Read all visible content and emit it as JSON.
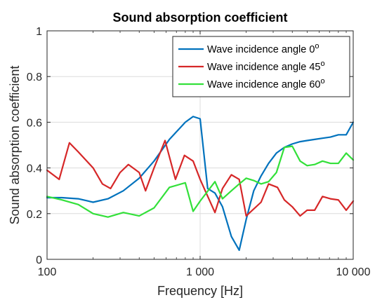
{
  "chart_data": {
    "type": "line",
    "title": "Sound absorption coefficient",
    "xlabel": "Frequency [Hz]",
    "ylabel": "Sound absorption coefficient",
    "xscale": "log",
    "xlim": [
      100,
      10000
    ],
    "ylim": [
      0,
      1
    ],
    "xticks": [
      100,
      1000,
      10000
    ],
    "xtick_labels": [
      "100",
      "1 000",
      "10 000"
    ],
    "yticks": [
      0,
      0.2,
      0.4,
      0.6,
      0.8,
      1
    ],
    "ytick_labels": [
      "0",
      "0.2",
      "0.4",
      "0.6",
      "0.8",
      "1"
    ],
    "grid": true,
    "legend_position": "top-right",
    "series": [
      {
        "name": "Wave incidence angle 0",
        "name_superscript": "o",
        "color": "#0072BD",
        "x": [
          100,
          125,
          160,
          200,
          250,
          315,
          400,
          500,
          630,
          800,
          900,
          1000,
          1120,
          1250,
          1400,
          1600,
          1800,
          2000,
          2240,
          2500,
          2800,
          3150,
          3550,
          4000,
          4500,
          5000,
          5600,
          6300,
          7100,
          8000,
          9000,
          10000
        ],
        "y": [
          0.27,
          0.27,
          0.265,
          0.25,
          0.265,
          0.3,
          0.355,
          0.43,
          0.525,
          0.6,
          0.625,
          0.615,
          0.31,
          0.29,
          0.23,
          0.1,
          0.04,
          0.175,
          0.3,
          0.365,
          0.42,
          0.465,
          0.49,
          0.505,
          0.515,
          0.52,
          0.525,
          0.53,
          0.535,
          0.545,
          0.545,
          0.6
        ]
      },
      {
        "name": "Wave incidence angle 45",
        "name_superscript": "o",
        "color": "#D62728",
        "x": [
          100,
          120,
          140,
          160,
          200,
          230,
          260,
          300,
          340,
          400,
          440,
          500,
          590,
          690,
          790,
          900,
          1000,
          1250,
          1400,
          1600,
          1800,
          2000,
          2500,
          2800,
          3200,
          3550,
          4000,
          4500,
          5000,
          5600,
          6300,
          7100,
          8000,
          9000,
          10000
        ],
        "y": [
          0.39,
          0.35,
          0.51,
          0.47,
          0.4,
          0.33,
          0.31,
          0.38,
          0.415,
          0.38,
          0.3,
          0.4,
          0.52,
          0.35,
          0.455,
          0.43,
          0.35,
          0.205,
          0.31,
          0.37,
          0.35,
          0.19,
          0.25,
          0.33,
          0.315,
          0.26,
          0.23,
          0.19,
          0.215,
          0.215,
          0.275,
          0.265,
          0.26,
          0.215,
          0.255
        ]
      },
      {
        "name": "Wave incidence angle 60",
        "name_superscript": "o",
        "color": "#33E03A",
        "x": [
          100,
          125,
          160,
          200,
          250,
          315,
          400,
          500,
          630,
          800,
          900,
          1000,
          1250,
          1400,
          1600,
          1800,
          2000,
          2240,
          2500,
          2800,
          3150,
          3550,
          4000,
          4500,
          5000,
          5600,
          6300,
          7100,
          8000,
          9000,
          10000
        ],
        "y": [
          0.275,
          0.26,
          0.24,
          0.2,
          0.185,
          0.205,
          0.19,
          0.225,
          0.315,
          0.335,
          0.21,
          0.255,
          0.34,
          0.265,
          0.3,
          0.33,
          0.355,
          0.345,
          0.33,
          0.34,
          0.38,
          0.49,
          0.495,
          0.43,
          0.41,
          0.415,
          0.43,
          0.42,
          0.42,
          0.465,
          0.435
        ]
      }
    ]
  }
}
